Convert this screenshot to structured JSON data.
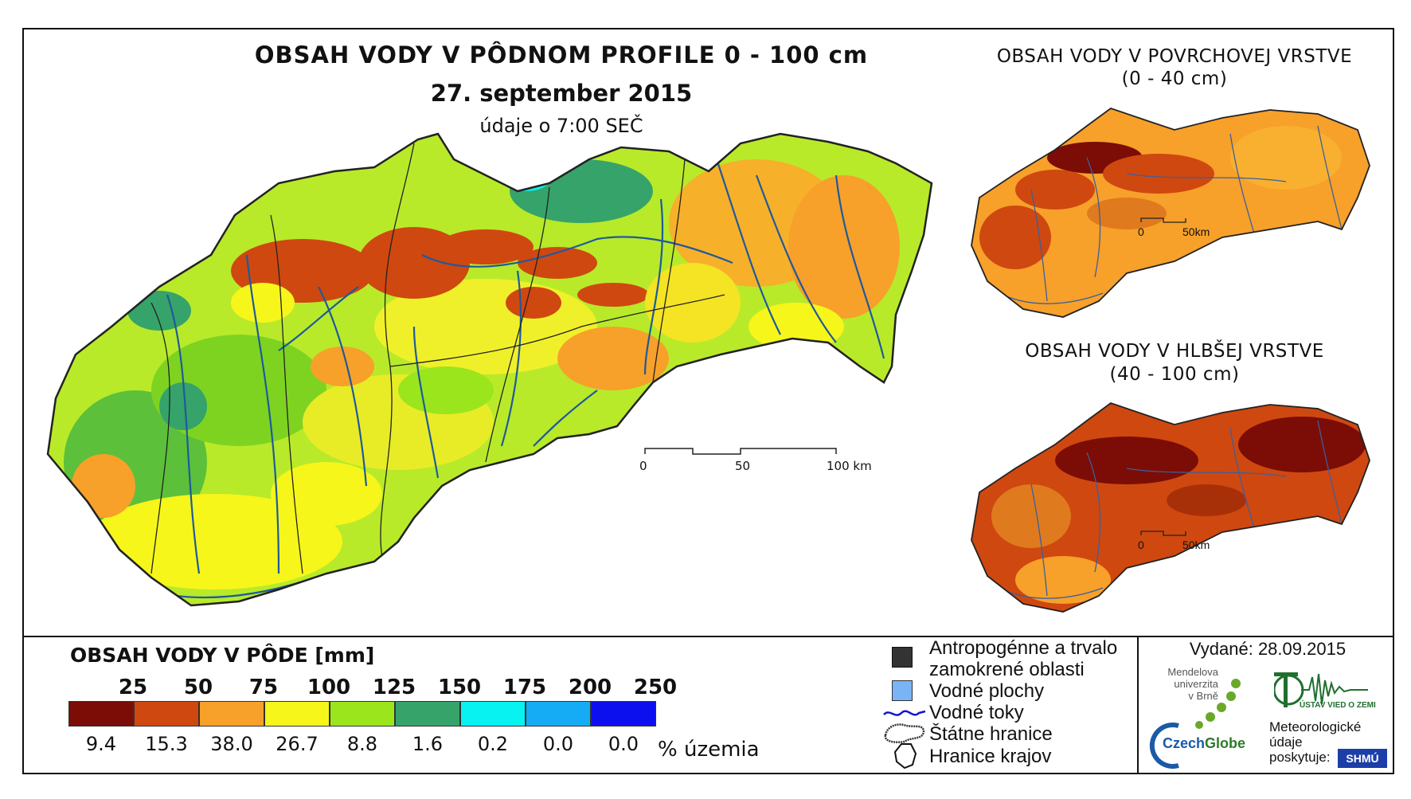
{
  "main": {
    "title": "OBSAH VODY V PÔDNOM PROFILE 0 - 100 cm",
    "date": "27. september 2015",
    "time": "údaje o 7:00 SEČ",
    "scale": {
      "l0": "0",
      "l50": "50",
      "l100": "100 km"
    }
  },
  "surface": {
    "title": "OBSAH VODY V POVRCHOVEJ VRSTVE",
    "subtitle": "(0 - 40 cm)",
    "scale_l0": "0",
    "scale_l50": "50km"
  },
  "deep": {
    "title": "OBSAH VODY V HLBŠEJ VRSTVE",
    "subtitle": "(40 - 100 cm)",
    "scale_l0": "0",
    "scale_l50": "50km"
  },
  "legend": {
    "title": "OBSAH VODY V PÔDE [mm]",
    "breaks": [
      "25",
      "50",
      "75",
      "100",
      "125",
      "150",
      "175",
      "200",
      "250"
    ],
    "classes": [
      {
        "color": "#7b0d06",
        "pct": "9.4"
      },
      {
        "color": "#cf4810",
        "pct": "15.3"
      },
      {
        "color": "#f7a02a",
        "pct": "38.0"
      },
      {
        "color": "#f6f61a",
        "pct": "26.7"
      },
      {
        "color": "#9be51c",
        "pct": "8.8"
      },
      {
        "color": "#36a36a",
        "pct": "1.6"
      },
      {
        "color": "#08f2f2",
        "pct": "0.2"
      },
      {
        "color": "#16acf5",
        "pct": "0.0"
      },
      {
        "color": "#0d10ee",
        "pct": "0.0"
      }
    ],
    "pct_unit": "% územia"
  },
  "symbols": {
    "anthropogenic_1": "Antropogénne a trvalo",
    "anthropogenic_2": "zamokrené oblasti",
    "water_bodies": "Vodné plochy",
    "rivers": "Vodné toky",
    "borders": "Štátne hranice",
    "regions": "Hranice krajov"
  },
  "credits": {
    "issued": "Vydané: 28.09.2015",
    "mendel_1": "Mendelova",
    "mendel_2": "univerzita",
    "mendel_3": "v Brně",
    "czechglobe_a": "Czech",
    "czechglobe_b": "Globe",
    "uvoz": "ÚSTAV VIED O ZEMI",
    "meteo_1": "Meteorologické",
    "meteo_2": "údaje",
    "meteo_3": "poskytuje:",
    "shmu": "SHMÚ"
  },
  "colors": {
    "frame": "#111111",
    "river": "#1e5a9c",
    "border": "#222222"
  }
}
